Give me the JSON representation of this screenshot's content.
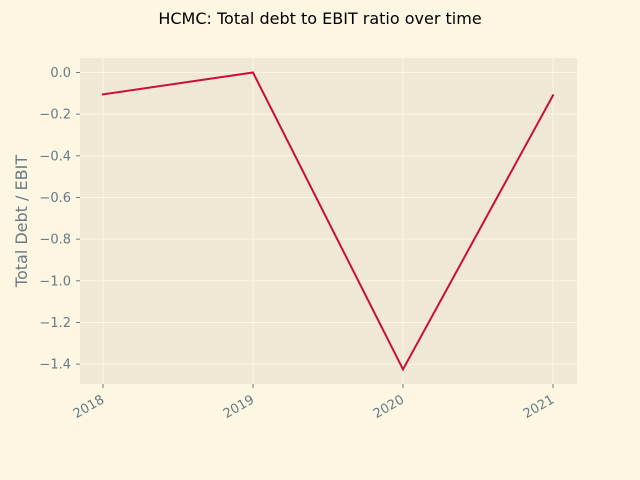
{
  "chart_data": {
    "type": "line",
    "title": "HCMC: Total debt to EBIT ratio over time",
    "xlabel": "",
    "ylabel": "Total Debt / EBIT",
    "categories": [
      "2018",
      "2019",
      "2020",
      "2021"
    ],
    "series": [
      {
        "name": "Total Debt / EBIT",
        "values": [
          -0.105,
          0.0,
          -1.425,
          -0.11
        ]
      }
    ],
    "ylim": [
      -1.5,
      0.07
    ],
    "yticks": [
      0.0,
      -0.2,
      -0.4,
      -0.6,
      -0.8,
      -1.0,
      -1.2,
      -1.4
    ],
    "ytick_labels": [
      "0.0",
      "−0.2",
      "−0.4",
      "−0.6",
      "−0.8",
      "−1.0",
      "−1.2",
      "−1.4"
    ],
    "grid": true,
    "colors": {
      "figure_bg": "#fdf6e3",
      "plot_bg": "#eee8d5",
      "grid": "#fdf6e3",
      "line": "#cb0f36",
      "tick": "#657b83"
    }
  }
}
